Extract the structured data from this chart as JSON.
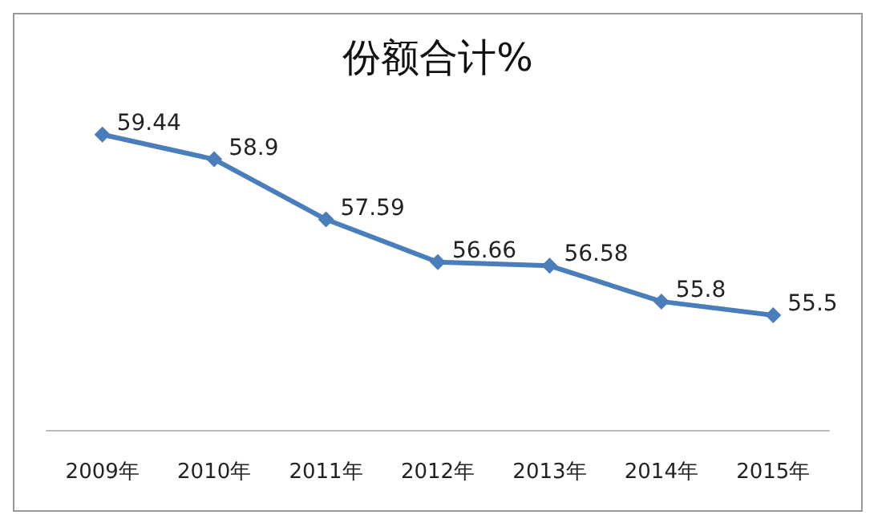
{
  "chart_data": {
    "type": "line",
    "title": "份额合计%",
    "categories": [
      "2009年",
      "2010年",
      "2011年",
      "2012年",
      "2013年",
      "2014年",
      "2015年"
    ],
    "series": [
      {
        "color": "#4a7ebb",
        "values": [
          59.44,
          58.9,
          57.59,
          56.66,
          56.58,
          55.8,
          55.5
        ]
      }
    ],
    "tick_labels": "x",
    "grid": false,
    "marker": "diamond",
    "line_style": "solid",
    "data_labels": true
  }
}
